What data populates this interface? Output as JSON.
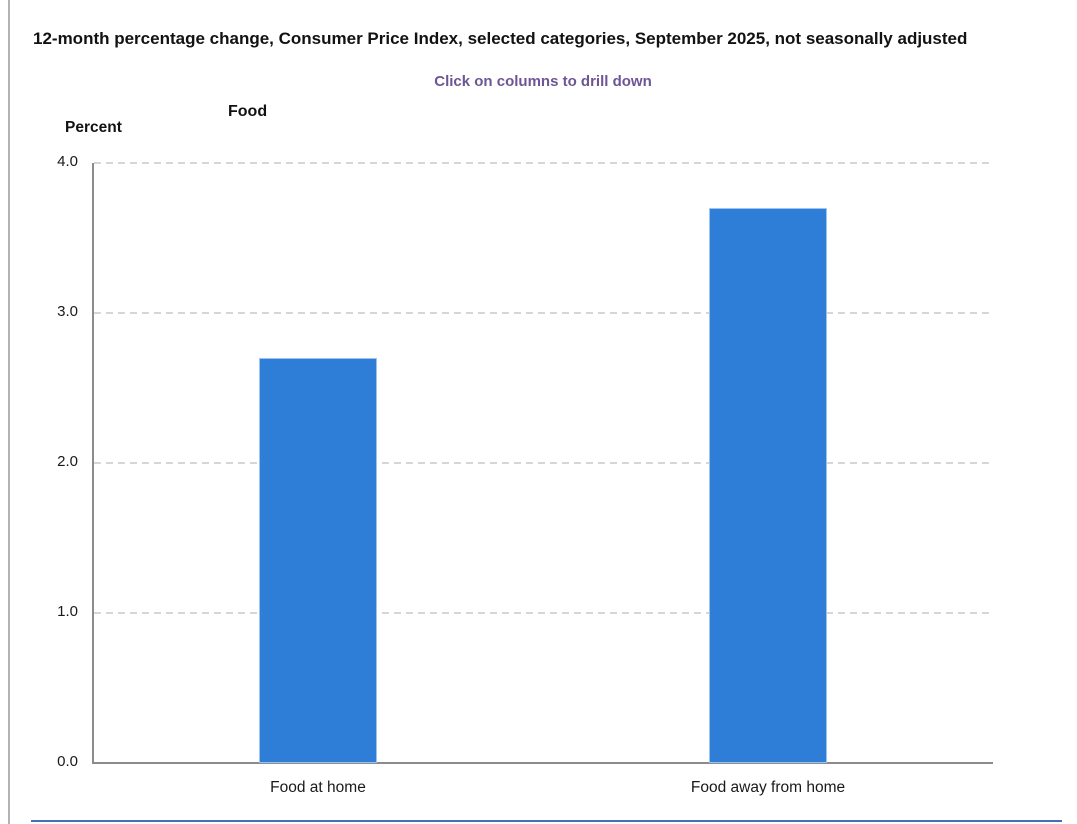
{
  "header": {
    "title": "12-month percentage change, Consumer Price Index, selected categories, September 2025, not seasonally adjusted",
    "drill_hint": "Click on columns to drill down"
  },
  "colors": {
    "bar_fill": "#2e7ed8",
    "drill_hint_text": "#6d5596",
    "gridline": "#d6d6d6",
    "axis_line": "#8c8c8c",
    "bottom_rule": "#4472b4"
  },
  "chart_data": {
    "type": "bar",
    "title": "Food",
    "subtitle": "Click on columns to drill down",
    "ylabel": "Percent",
    "xlabel": "",
    "categories": [
      "Food at home",
      "Food away from home"
    ],
    "values": [
      2.7,
      3.7
    ],
    "ylim": [
      0,
      4.0
    ],
    "ytick_labels": [
      "4.0",
      "3.0",
      "2.0",
      "1.0",
      "0.0"
    ],
    "grid": "horizontal-dashed",
    "legend": "none"
  }
}
